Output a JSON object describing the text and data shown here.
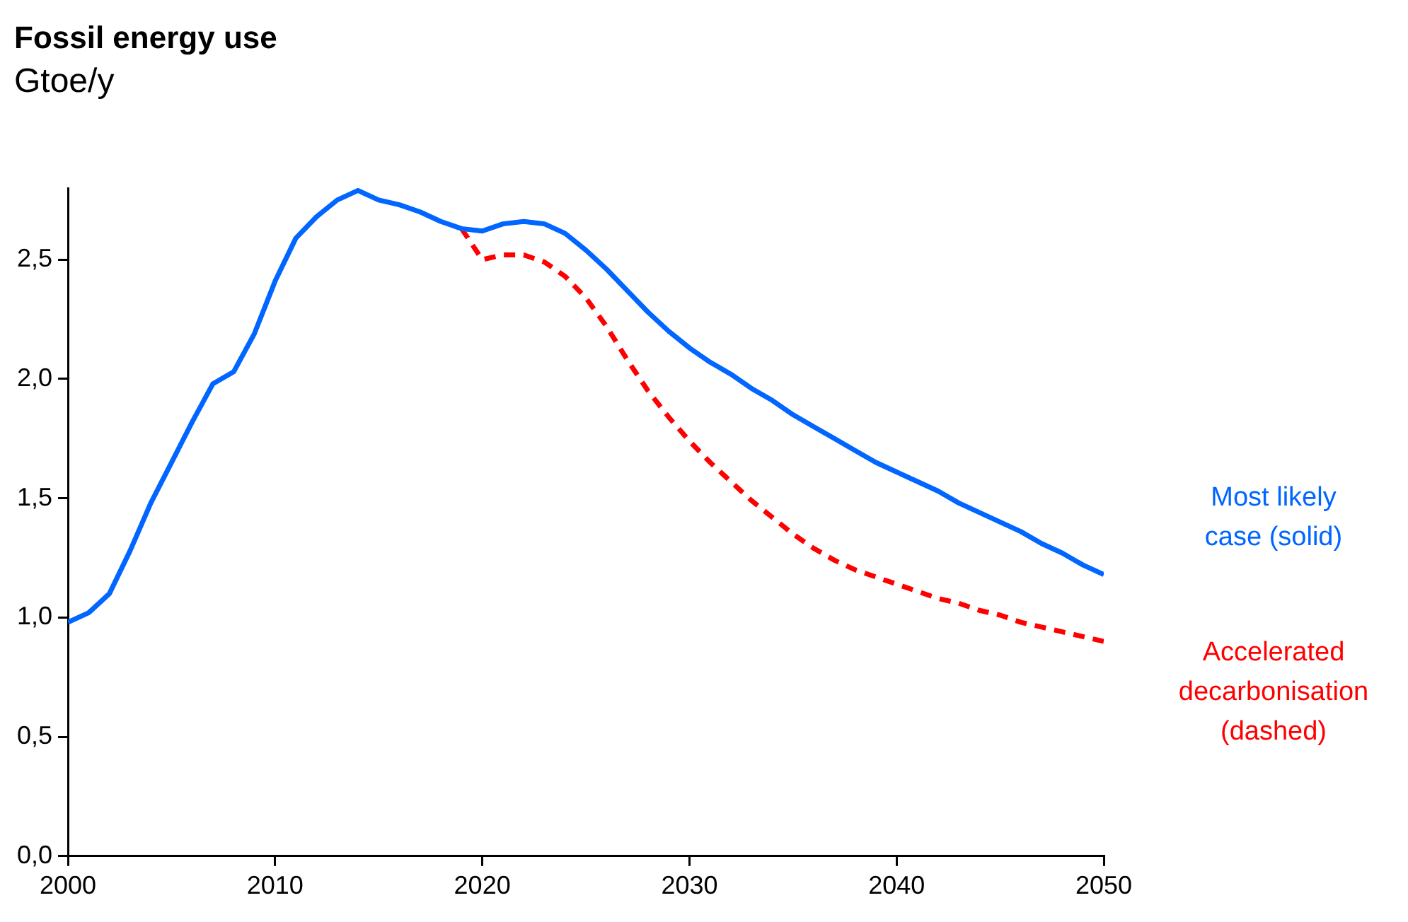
{
  "chart_data": {
    "type": "line",
    "title": "Fossil energy use",
    "subtitle": "Gtoe/y",
    "x": [
      2000,
      2001,
      2002,
      2003,
      2004,
      2005,
      2006,
      2007,
      2008,
      2009,
      2010,
      2011,
      2012,
      2013,
      2014,
      2015,
      2016,
      2017,
      2018,
      2019,
      2020,
      2021,
      2022,
      2023,
      2024,
      2025,
      2026,
      2027,
      2028,
      2029,
      2030,
      2031,
      2032,
      2033,
      2034,
      2035,
      2036,
      2037,
      2038,
      2039,
      2040,
      2041,
      2042,
      2043,
      2044,
      2045,
      2046,
      2047,
      2048,
      2049,
      2050
    ],
    "series": [
      {
        "name": "Most likely case (solid)",
        "color": "#0066ff",
        "line_style": "solid",
        "values": [
          0.98,
          1.02,
          1.1,
          1.28,
          1.48,
          1.65,
          1.82,
          1.98,
          2.03,
          2.19,
          2.41,
          2.59,
          2.68,
          2.75,
          2.79,
          2.75,
          2.73,
          2.7,
          2.66,
          2.63,
          2.62,
          2.65,
          2.66,
          2.65,
          2.61,
          2.54,
          2.46,
          2.37,
          2.28,
          2.2,
          2.13,
          2.07,
          2.02,
          1.96,
          1.91,
          1.85,
          1.8,
          1.75,
          1.7,
          1.65,
          1.61,
          1.57,
          1.53,
          1.48,
          1.44,
          1.4,
          1.36,
          1.31,
          1.27,
          1.22,
          1.18
        ]
      },
      {
        "name": "Accelerated decarbonisation (dashed)",
        "color": "#ff0000",
        "line_style": "dashed",
        "x": [
          2019,
          2020,
          2021,
          2022,
          2023,
          2024,
          2025,
          2026,
          2027,
          2028,
          2029,
          2030,
          2031,
          2032,
          2033,
          2034,
          2035,
          2036,
          2037,
          2038,
          2039,
          2040,
          2041,
          2042,
          2043,
          2044,
          2045,
          2046,
          2047,
          2048,
          2049,
          2050
        ],
        "values": [
          2.63,
          2.5,
          2.52,
          2.52,
          2.49,
          2.43,
          2.34,
          2.22,
          2.08,
          1.95,
          1.84,
          1.74,
          1.65,
          1.57,
          1.49,
          1.42,
          1.35,
          1.29,
          1.24,
          1.2,
          1.17,
          1.14,
          1.11,
          1.08,
          1.06,
          1.03,
          1.01,
          0.98,
          0.96,
          0.94,
          0.92,
          0.9
        ]
      }
    ],
    "xlim": [
      2000,
      2050
    ],
    "xticks": [
      2000,
      2010,
      2020,
      2030,
      2040,
      2050
    ],
    "ylim": [
      0,
      2.8
    ],
    "yticks": [
      {
        "value": 0,
        "label": "0,0"
      },
      {
        "value": 0.5,
        "label": "0,5"
      },
      {
        "value": 1,
        "label": "1,0"
      },
      {
        "value": 1.5,
        "label": "1,5"
      },
      {
        "value": 2,
        "label": "2,0"
      },
      {
        "value": 2.5,
        "label": "2,5"
      }
    ],
    "grid": false,
    "legend": false,
    "marker": "none"
  }
}
